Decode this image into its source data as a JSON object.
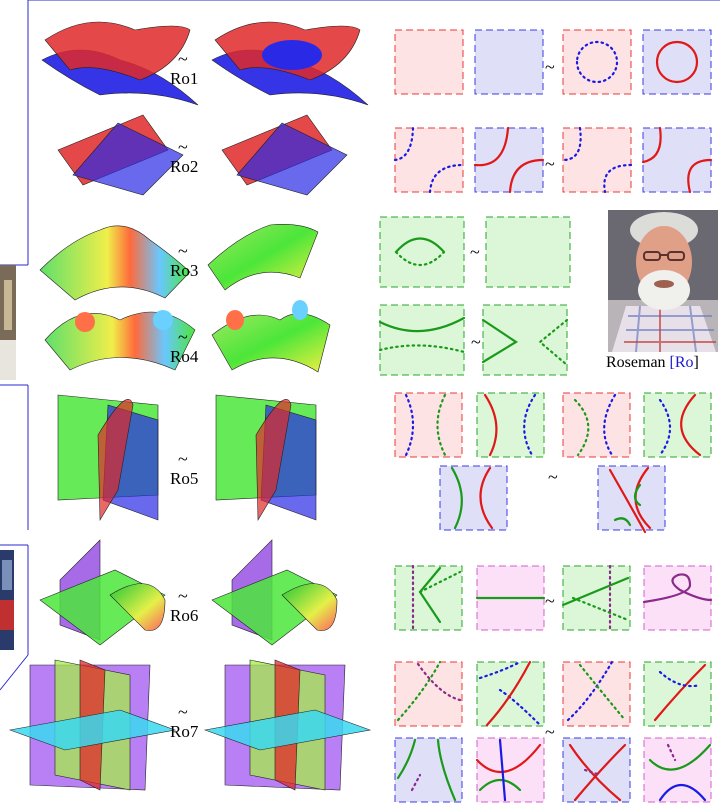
{
  "moves": [
    {
      "label": "Ro1",
      "tilde": "~"
    },
    {
      "label": "Ro2",
      "tilde": "~"
    },
    {
      "label": "Ro3",
      "tilde": "~"
    },
    {
      "label": "Ro4",
      "tilde": "~"
    },
    {
      "label": "Ro5",
      "tilde": "~"
    },
    {
      "label": "Ro6",
      "tilde": "~"
    },
    {
      "label": "Ro7",
      "tilde": "~"
    }
  ],
  "diagram_tilde": "~",
  "credit": {
    "name": "Roseman",
    "open": "[",
    "cite": "Ro",
    "close": "]"
  },
  "colors": {
    "red_panel": "#fde3e3",
    "red_border": "#e83a3a",
    "blue_panel": "#dfe0f7",
    "blue_border": "#3a3ae0",
    "green_panel": "#dcf7d8",
    "green_border": "#2aa32a",
    "pink_panel": "#fbe0f7",
    "pink_border": "#d060c8",
    "frame": "#2a2ad0"
  }
}
